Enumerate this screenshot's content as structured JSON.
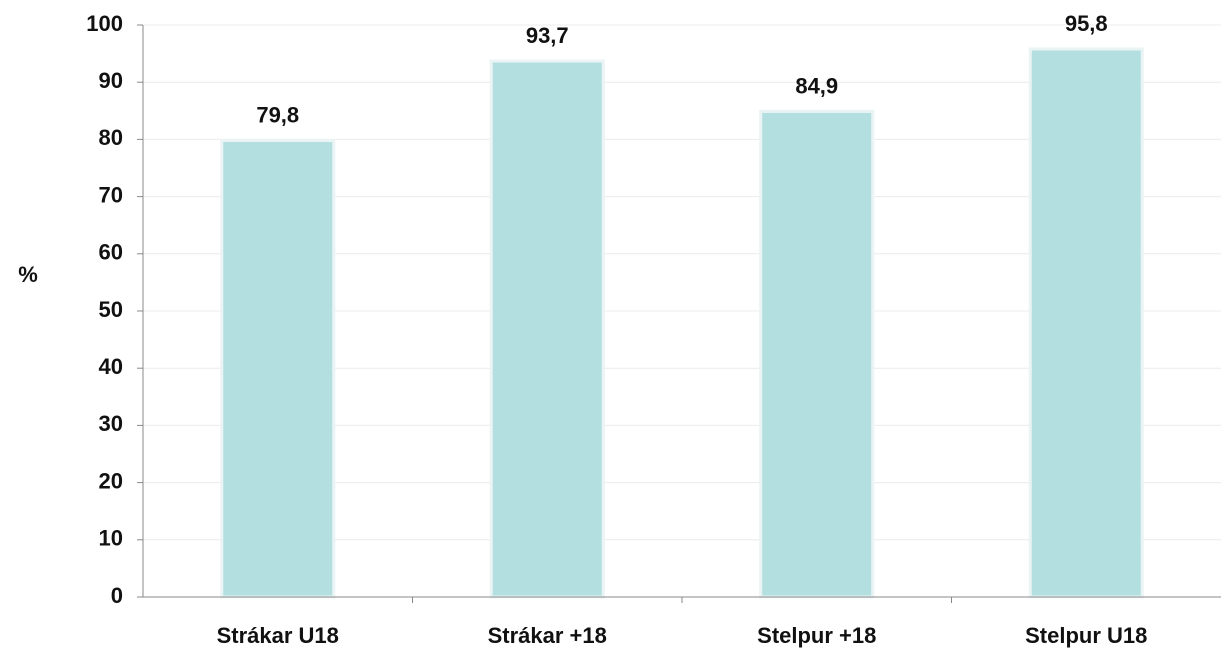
{
  "chart_data": {
    "type": "bar",
    "title": "",
    "xlabel": "",
    "ylabel": "%",
    "categories": [
      "Strákar U18",
      "Strákar +18",
      "Stelpur +18",
      "Stelpur U18"
    ],
    "values": [
      79.8,
      93.7,
      84.9,
      95.8
    ],
    "data_labels": [
      "79,8",
      "93,7",
      "84,9",
      "95,8"
    ],
    "ylim": [
      0,
      100
    ],
    "yticks": [
      0,
      10,
      20,
      30,
      40,
      50,
      60,
      70,
      80,
      90,
      100
    ],
    "grid": true,
    "legend": "none",
    "colors": {
      "bar_fill": "#b3dfe0",
      "bar_stroke": "#ebf4f4",
      "grid": "#ececec",
      "axis": "#888888",
      "text": "#111111"
    }
  }
}
